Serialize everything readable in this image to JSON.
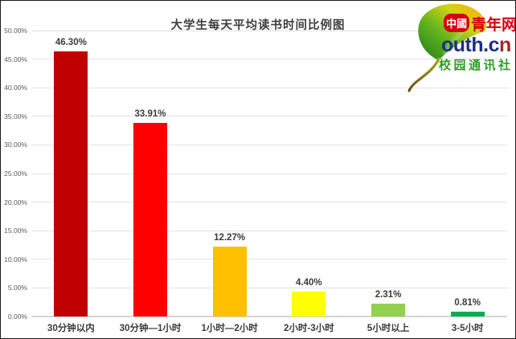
{
  "chart_data": {
    "type": "bar",
    "title": "大学生每天平均读书时间比例图",
    "categories": [
      "30分钟以内",
      "30分钟—1小时",
      "1小时—2小时",
      "2小时-3小时",
      "5小时以上",
      "3-5小时"
    ],
    "values": [
      46.3,
      33.91,
      12.27,
      4.4,
      2.31,
      0.81
    ],
    "value_labels": [
      "46.30%",
      "33.91%",
      "12.27%",
      "4.40%",
      "2.31%",
      "0.81%"
    ],
    "bar_colors": [
      "#c00000",
      "#ff0000",
      "#ffc000",
      "#ffff00",
      "#92d050",
      "#00b050"
    ],
    "xlabel": "",
    "ylabel": "",
    "ylim": [
      0,
      50
    ],
    "ytick_step": 5,
    "ytick_labels": [
      "0.00%",
      "5.00%",
      "10.00%",
      "15.00%",
      "20.00%",
      "25.00%",
      "30.00%",
      "35.00%",
      "40.00%",
      "45.00%",
      "50.00%"
    ],
    "grid": true,
    "legend": "none",
    "title_color": "#404040",
    "label_color": "#3b3b3b"
  },
  "logo": {
    "badge_text": "中國",
    "brand_cn": "青年网",
    "brand_en_blue": "outh.c",
    "brand_en_red": "n",
    "subtitle": "校园通讯社",
    "badge_color": "#d7000f",
    "brand_cn_color": "#d7000f",
    "brand_en_blue_color": "#1d2f85",
    "brand_en_red_color": "#9e2b25",
    "subtitle_color": "#2f9d27"
  }
}
